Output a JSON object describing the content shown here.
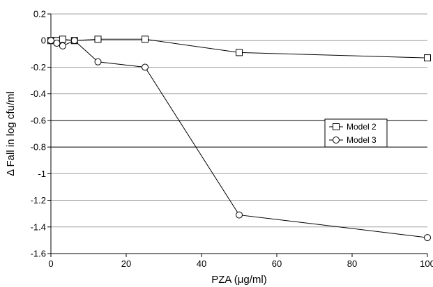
{
  "chart_data": {
    "type": "line",
    "xlabel": "PZA (μg/ml)",
    "ylabel": "Δ Fall in log cfu/ml",
    "xlim": [
      0,
      100
    ],
    "ylim": [
      -1.6,
      0.2
    ],
    "xticks": [
      0,
      20,
      40,
      60,
      80,
      100
    ],
    "yticks": [
      0.2,
      0,
      -0.2,
      -0.4,
      -0.6,
      -0.8,
      -1,
      -1.2,
      -1.4,
      -1.6
    ],
    "ytick_labels": [
      "0.2",
      "0",
      "-0.2",
      "-0.4",
      "-0.6",
      "-0.8",
      "-1",
      "-1.2",
      "-1.4",
      "-1.6"
    ],
    "grid": true,
    "legend_position": "right-middle",
    "series": [
      {
        "name": "Model 2",
        "marker": "square",
        "x": [
          0,
          1.56,
          3.13,
          6.25,
          12.5,
          25,
          50,
          100
        ],
        "y": [
          0,
          0,
          0.01,
          0,
          0.01,
          0.01,
          -0.09,
          -0.13
        ]
      },
      {
        "name": "Model 3",
        "marker": "circle",
        "x": [
          0,
          1.56,
          3.13,
          6.25,
          12.5,
          25,
          50,
          100
        ],
        "y": [
          0,
          -0.02,
          -0.04,
          0,
          -0.16,
          -0.2,
          -1.31,
          -1.48
        ]
      }
    ]
  }
}
